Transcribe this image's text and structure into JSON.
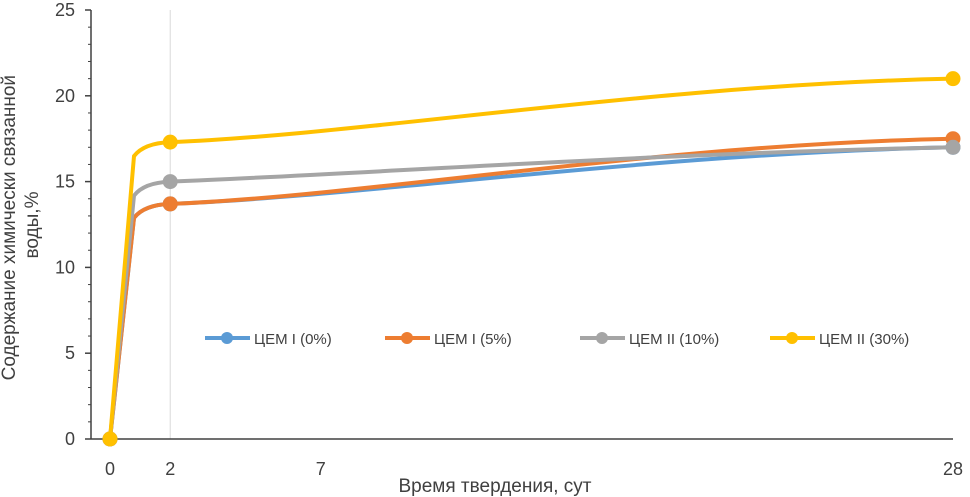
{
  "chart_data": {
    "type": "line",
    "title": "",
    "xlabel": "Время твердения, сут",
    "ylabel_lines": [
      "Содержание химически связанной",
      "воды,%"
    ],
    "x": [
      0,
      2,
      28
    ],
    "x_ticks": [
      0,
      2,
      7,
      28
    ],
    "xlim": [
      0,
      28
    ],
    "ylim": [
      0,
      25
    ],
    "y_ticks": [
      0,
      5,
      10,
      15,
      20,
      25
    ],
    "grid": "vertical gridline at x = 2",
    "legend_position": "inside, center",
    "series": [
      {
        "name": "ЦЕМ I (0%)",
        "color": "#5B9BD5",
        "values": [
          0,
          13.7,
          17.0
        ]
      },
      {
        "name": "ЦЕМ I  (5%)",
        "color": "#ED7D31",
        "values": [
          0,
          13.7,
          17.5
        ]
      },
      {
        "name": "ЦЕМ II (10%)",
        "color": "#A5A5A5",
        "values": [
          0,
          15.0,
          17.0
        ]
      },
      {
        "name": "ЦЕМ II (30%)",
        "color": "#FFC000",
        "values": [
          0,
          17.3,
          21.0
        ]
      }
    ]
  }
}
